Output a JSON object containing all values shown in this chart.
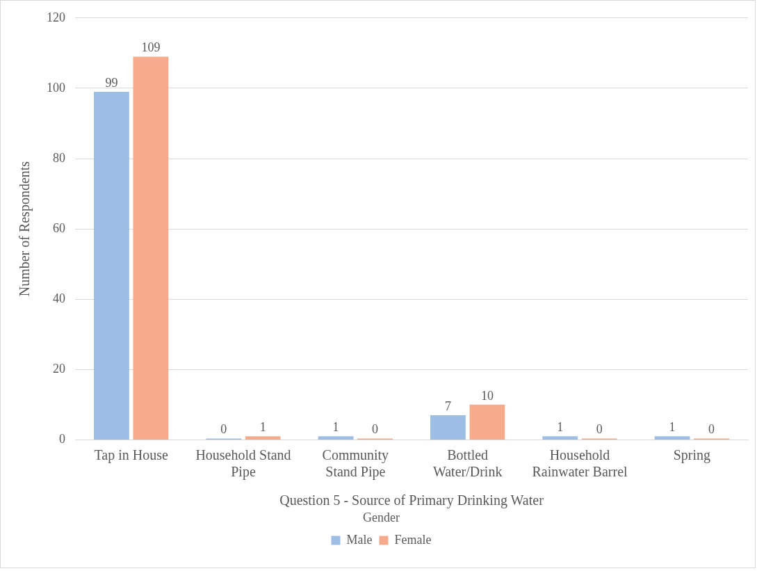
{
  "chart_data": {
    "type": "bar",
    "categories": [
      "Tap in House",
      "Household Stand Pipe",
      "Community Stand Pipe",
      "Bottled Water/Drink",
      "Household Rainwater Barrel",
      "Spring"
    ],
    "series": [
      {
        "name": "Male",
        "color": "#9dbfe6",
        "values": [
          99,
          0,
          1,
          7,
          1,
          1
        ]
      },
      {
        "name": "Female",
        "color": "#f6ac8c",
        "values": [
          109,
          1,
          0,
          10,
          0,
          0
        ]
      }
    ],
    "xlabel": "Question 5 - Source of Primary Drinking Water",
    "ylabel": "Number of Respondents",
    "legend_title": "Gender",
    "ylim": [
      0,
      120
    ],
    "yticks": [
      0,
      20,
      40,
      60,
      80,
      100,
      120
    ],
    "grid": "y",
    "legend": "bottom",
    "data_labels": true
  }
}
